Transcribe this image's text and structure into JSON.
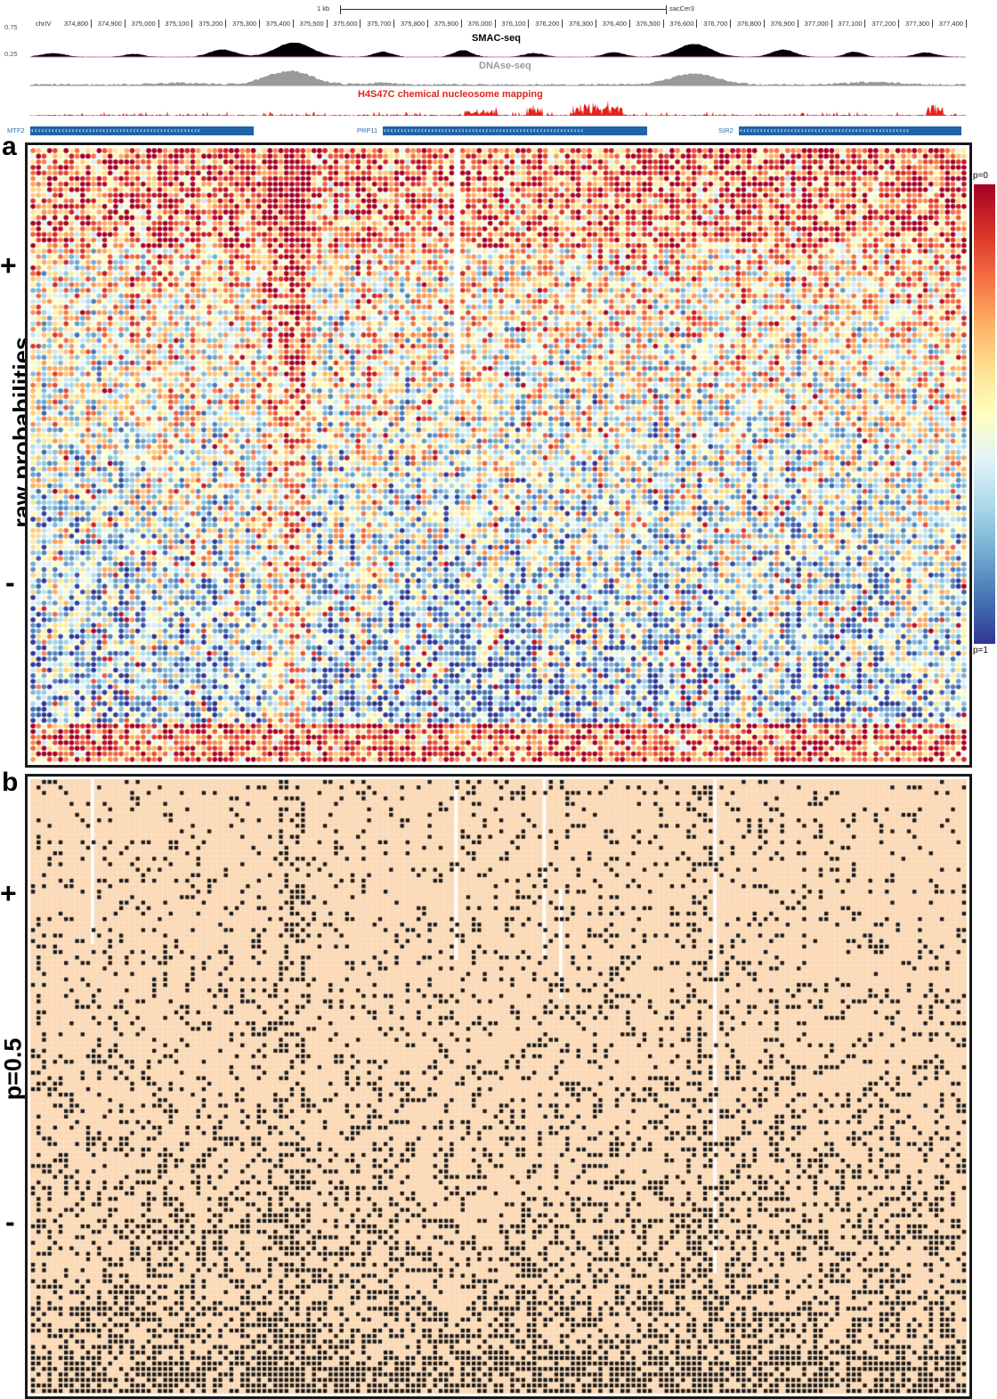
{
  "browser": {
    "scale": {
      "label": "1 kb",
      "assembly": "sacCer3"
    },
    "chrom": "chrIV",
    "positions": [
      "374,800",
      "374,900",
      "375,000",
      "375,100",
      "375,200",
      "375,300",
      "375,400",
      "375,500",
      "375,600",
      "375,700",
      "375,800",
      "375,900",
      "376,000",
      "376,100",
      "376,200",
      "376,300",
      "376,400",
      "376,500",
      "376,600",
      "376,700",
      "376,800",
      "376,900",
      "377,000",
      "377,100",
      "377,200",
      "377,300",
      "377,400"
    ],
    "yaxis": [
      "0.75",
      "0.25"
    ],
    "tracks": [
      {
        "title": "SMAC-seq",
        "color": "#000000"
      },
      {
        "title": "DNAse-seq",
        "color": "#9a9a9a"
      },
      {
        "title": "H4S47C chemical nucleosome mapping",
        "color": "#e3241b"
      }
    ],
    "genes": [
      {
        "label": "MTF2",
        "color": "#1f63a8"
      },
      {
        "label": "PRP11",
        "color": "#1f63a8"
      },
      {
        "label": "SIR2",
        "color": "#1f63a8"
      }
    ],
    "arrow_glyph": "‹"
  },
  "panel_a": {
    "letter": "a",
    "ylabel": "raw probabilities",
    "strand_plus": "+",
    "strand_minus": "-",
    "colorbar": {
      "top_label": "p=0",
      "bottom_label": "p=1",
      "colors": [
        "#a50026",
        "#d73027",
        "#f46d43",
        "#fdae61",
        "#fee090",
        "#ffffbf",
        "#e0f3f8",
        "#abd9e9",
        "#74add1",
        "#4575b4",
        "#313695"
      ]
    }
  },
  "panel_b": {
    "letter": "b",
    "ylabel": "p=0.5",
    "strand_plus": "+",
    "strand_minus": "-",
    "background_color": "#fbd9b5",
    "dot_color": "#1a1a1a"
  },
  "chart_data": [
    {
      "type": "heatmap",
      "title": "",
      "ylabel": "raw probabilities",
      "xlabel": "",
      "rows": 110,
      "cols": 170,
      "value_range": [
        0,
        1
      ],
      "colorbar": [
        "p=0",
        "p=1"
      ],
      "note": "per-read methylation probability along the locus; the values of the individual cells are not legible"
    },
    {
      "type": "heatmap",
      "title": "",
      "ylabel": "p=0.5",
      "rows": 112,
      "cols": 170,
      "value_range": [
        0,
        1
      ],
      "note": "binarised calls; a black dot marks a call, the peach background marks none"
    }
  ]
}
